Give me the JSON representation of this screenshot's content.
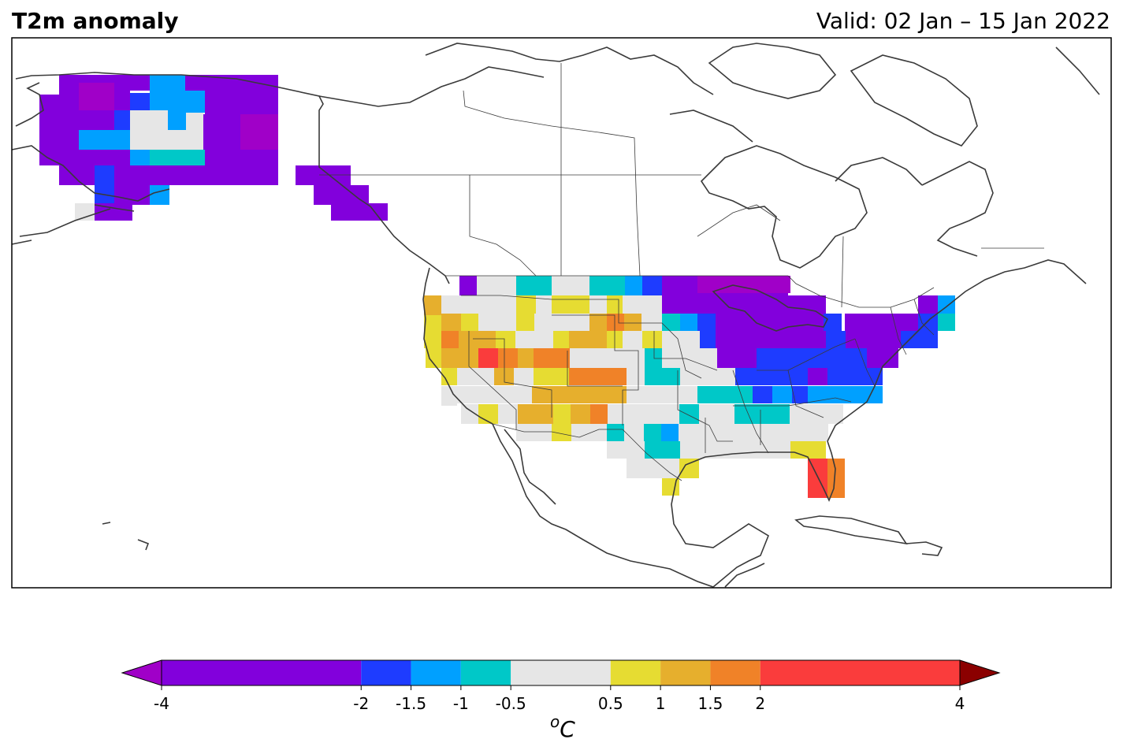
{
  "title": "T2m anomaly",
  "valid_label": "Valid: 02 Jan – 15 Jan 2022",
  "map_colors": {
    "land_outline": "#3a3a3a",
    "ocean": "#ffffff"
  },
  "colorbar": {
    "unit_prefix": "o",
    "unit_letter": "C",
    "bounds": [
      -4,
      -2,
      -1.5,
      -1,
      -0.5,
      0.5,
      1,
      1.5,
      2,
      4
    ],
    "tick_labels": [
      "-4",
      "-2",
      "-1.5",
      "-1",
      "-0.5",
      "0.5",
      "1",
      "1.5",
      "2",
      "4"
    ],
    "colors": [
      "#8200dc",
      "#1e3cff",
      "#00a0ff",
      "#00c8c8",
      "#e6e6e6",
      "#e6dc32",
      "#e6af2d",
      "#f08228",
      "#fa3c3c"
    ],
    "under_color": "#a000c8",
    "over_color": "#8b0000"
  },
  "legend": {
    "very_cold": "#a000c8",
    "cold": "#8200dc",
    "cool": "#1e3cff",
    "cool2": "#00a0ff",
    "slightly_cool": "#00c8c8",
    "neutral": "#e6e6e6",
    "slightly_warm": "#e6dc32",
    "warm": "#e6af2d",
    "warmer": "#f08228",
    "hot": "#fa3c3c"
  },
  "chart_data": {
    "type": "heatmap",
    "variable": "T2m anomaly",
    "unit": "oC",
    "regions": [
      {
        "region": "Alaska interior",
        "category": "-4 to -2"
      },
      {
        "region": "Alaska central",
        "category": "-0.5 to 0.5"
      },
      {
        "region": "Alaska panhandle",
        "category": "-4 to -2"
      },
      {
        "region": "US Pacific coast",
        "category": "0.5 to 2"
      },
      {
        "region": "US Great Basin / Southwest",
        "category": "1 to 2"
      },
      {
        "region": "US Northern Plains",
        "category": "-1 to 0.5"
      },
      {
        "region": "US Great Lakes / Midwest",
        "category": "-4 to -2"
      },
      {
        "region": "US Northeast",
        "category": "-4 to -1.5"
      },
      {
        "region": "US Mid-Atlantic",
        "category": "-2 to -1.5"
      },
      {
        "region": "US Southeast",
        "category": "-1 to 0.5"
      },
      {
        "region": "Florida",
        "category": "1.5 to 4"
      }
    ]
  }
}
